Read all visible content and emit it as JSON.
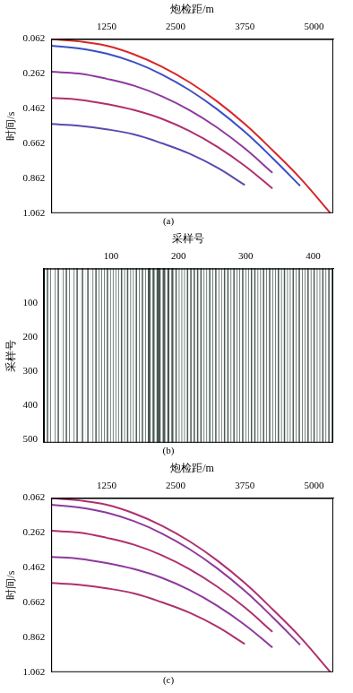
{
  "chart_data": [
    {
      "type": "line",
      "title": "(a)",
      "x_label": "炮检距/m",
      "y_label": "时间/s",
      "xlim": [
        250,
        5350
      ],
      "xticks": [
        1250,
        2500,
        3750,
        5000
      ],
      "ylim": [
        0.062,
        1.062
      ],
      "yticks": [
        0.062,
        0.262,
        0.462,
        0.662,
        0.862,
        1.062
      ],
      "grid": false,
      "x": [
        250,
        750,
        1250,
        1750,
        2250,
        2750,
        3250,
        3750,
        4250,
        4750,
        5300
      ],
      "series": [
        {
          "color": "#d62728",
          "values": [
            0.062,
            0.075,
            0.1,
            0.15,
            0.22,
            0.31,
            0.42,
            0.55,
            0.7,
            0.86,
            1.062
          ]
        },
        {
          "color": "#3b4fc4",
          "values": [
            0.1,
            0.115,
            0.145,
            0.195,
            0.265,
            0.355,
            0.465,
            0.595,
            0.745,
            0.905,
            null
          ]
        },
        {
          "color": "#8e3a9d",
          "values": [
            0.25,
            0.26,
            0.29,
            0.33,
            0.39,
            0.47,
            0.57,
            0.69,
            0.83,
            null,
            null
          ]
        },
        {
          "color": "#b0306e",
          "values": [
            0.4,
            0.41,
            0.435,
            0.47,
            0.52,
            0.59,
            0.68,
            0.79,
            0.92,
            null,
            null
          ]
        },
        {
          "color": "#5a4ab0",
          "values": [
            0.55,
            0.56,
            0.58,
            0.61,
            0.66,
            0.72,
            0.8,
            0.9,
            null,
            null,
            null
          ]
        }
      ]
    },
    {
      "type": "bar",
      "title": "(b)",
      "x_label": "采样号",
      "y_label": "采样号",
      "xlim": [
        0,
        430
      ],
      "xticks": [
        100,
        200,
        300,
        400
      ],
      "ylim": [
        0,
        510
      ],
      "yticks": [
        100,
        200,
        300,
        400,
        500
      ],
      "grid": false,
      "color": "#ffffff",
      "x": [
        3,
        8,
        12,
        15,
        19,
        24,
        27,
        31,
        36,
        40,
        43,
        47,
        52,
        55,
        60,
        63,
        68,
        71,
        75,
        80,
        84,
        88,
        92,
        97,
        101,
        105,
        109,
        113,
        118,
        122,
        127,
        131,
        135,
        140,
        144,
        149,
        153,
        160,
        166,
        175,
        182,
        188,
        194,
        199,
        203,
        207,
        211,
        216,
        221,
        226,
        231,
        236,
        240,
        244,
        249,
        253,
        258,
        262,
        266,
        271,
        276,
        280,
        285,
        289,
        293,
        298,
        302,
        306,
        311,
        316,
        320,
        324,
        329,
        333,
        338,
        342,
        346,
        351,
        355,
        360,
        364,
        368,
        373,
        377,
        382,
        386,
        390,
        395,
        399,
        404,
        408,
        412,
        417,
        421,
        426
      ]
    },
    {
      "type": "line",
      "title": "(c)",
      "x_label": "炮检距/m",
      "y_label": "时间/s",
      "xlim": [
        250,
        5350
      ],
      "xticks": [
        1250,
        2500,
        3750,
        5000
      ],
      "ylim": [
        0.062,
        1.062
      ],
      "yticks": [
        0.062,
        0.262,
        0.462,
        0.662,
        0.862,
        1.062
      ],
      "grid": false,
      "x": [
        250,
        750,
        1250,
        1750,
        2250,
        2750,
        3250,
        3750,
        4250,
        4750,
        5300
      ],
      "series": [
        {
          "color": "#b0306e",
          "values": [
            0.062,
            0.075,
            0.1,
            0.15,
            0.22,
            0.31,
            0.42,
            0.55,
            0.7,
            0.86,
            1.062
          ]
        },
        {
          "color": "#8e3a9d",
          "values": [
            0.1,
            0.115,
            0.145,
            0.195,
            0.265,
            0.355,
            0.465,
            0.595,
            0.745,
            0.905,
            null
          ]
        },
        {
          "color": "#b0306e",
          "values": [
            0.25,
            0.26,
            0.29,
            0.33,
            0.39,
            0.47,
            0.57,
            0.69,
            0.83,
            null,
            null
          ]
        },
        {
          "color": "#8e3a9d",
          "values": [
            0.4,
            0.41,
            0.435,
            0.47,
            0.52,
            0.59,
            0.68,
            0.79,
            0.92,
            null,
            null
          ]
        },
        {
          "color": "#b0306e",
          "values": [
            0.55,
            0.56,
            0.58,
            0.61,
            0.66,
            0.72,
            0.8,
            0.9,
            null,
            null,
            null
          ]
        }
      ]
    }
  ]
}
